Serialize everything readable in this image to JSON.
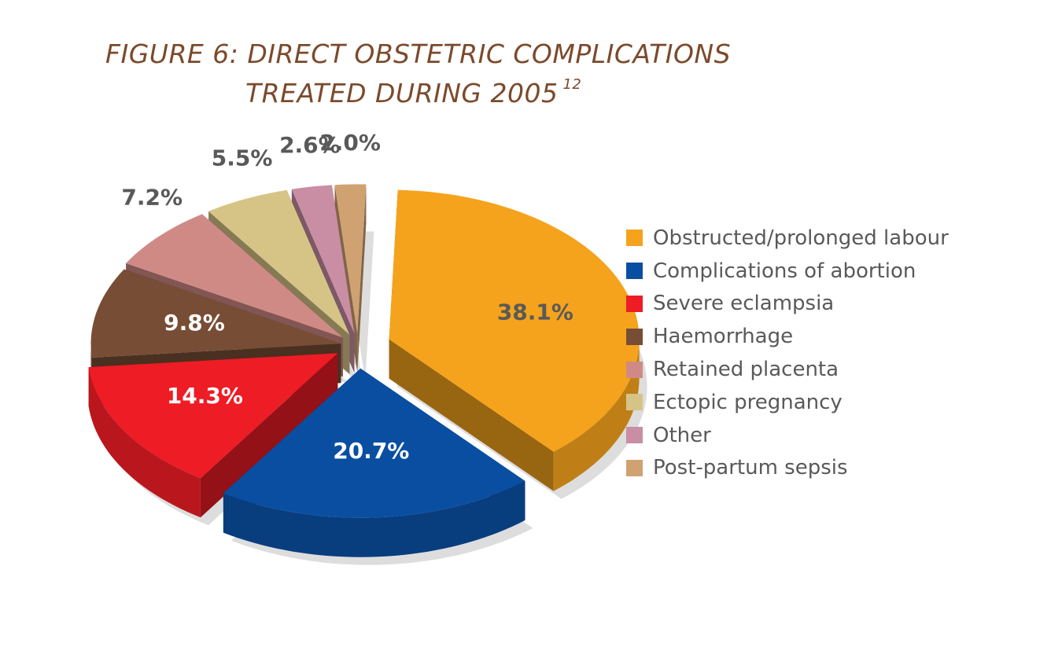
{
  "title": {
    "line1": "FIGURE 6: DIRECT OBSTETRIC COMPLICATIONS",
    "line2": "TREATED DURING 2005",
    "footnote": "12"
  },
  "chart_data": {
    "type": "pie",
    "style": "3d-exploded",
    "legend_position": "right",
    "categories": [
      "Obstructed/prolonged labour",
      "Complications of abortion",
      "Severe eclampsia",
      "Haemorrhage",
      "Retained placenta",
      "Ectopic pregnancy",
      "Other",
      "Post-partum sepsis"
    ],
    "values": [
      38.1,
      20.7,
      14.3,
      9.8,
      7.2,
      5.5,
      2.6,
      2.0
    ],
    "data_labels": [
      "38.1%",
      "20.7%",
      "14.3%",
      "9.8%",
      "7.2%",
      "5.5%",
      "2.6%",
      "2.0%"
    ],
    "colors": [
      "#f5a31c",
      "#0a4ea2",
      "#ee1c25",
      "#774d35",
      "#d08a86",
      "#d6c487",
      "#c98ea4",
      "#d0a272"
    ]
  }
}
